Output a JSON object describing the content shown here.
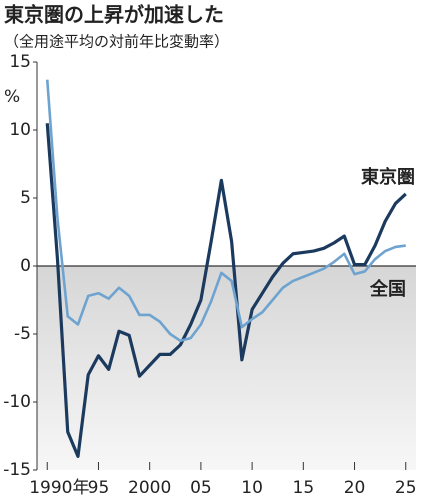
{
  "chart_data": {
    "type": "line",
    "title": "東京圏の上昇が加速した",
    "subtitle": "（全用途平均の対前年比変動率）",
    "ylabel": "%",
    "x": [
      1990,
      1991,
      1992,
      1993,
      1994,
      1995,
      1996,
      1997,
      1998,
      1999,
      2000,
      2001,
      2002,
      2003,
      2004,
      2005,
      2006,
      2007,
      2008,
      2009,
      2010,
      2011,
      2012,
      2013,
      2014,
      2015,
      2016,
      2017,
      2018,
      2019,
      2020,
      2021,
      2022,
      2023,
      2024,
      2025
    ],
    "series": [
      {
        "name": "東京圏",
        "color": "#1c3a5e",
        "values": [
          10.5,
          0.5,
          -12.2,
          -14,
          -8,
          -6.6,
          -7.6,
          -4.8,
          -5.1,
          -8.1,
          -7.3,
          -6.5,
          -6.5,
          -5.8,
          -4.3,
          -2.5,
          1.8,
          6.3,
          1.8,
          -6.9,
          -3.2,
          -2,
          -0.8,
          0.2,
          0.9,
          1,
          1.1,
          1.3,
          1.7,
          2.2,
          0.1,
          0.1,
          1.5,
          3.3,
          4.6,
          5.3
        ]
      },
      {
        "name": "全国",
        "color": "#6ea3cf",
        "values": [
          13.7,
          3.5,
          -3.7,
          -4.3,
          -2.2,
          -2,
          -2.4,
          -1.6,
          -2.2,
          -3.6,
          -3.6,
          -4.1,
          -5,
          -5.5,
          -5.3,
          -4.3,
          -2.6,
          -0.5,
          -1.1,
          -4.5,
          -3.9,
          -3.4,
          -2.5,
          -1.6,
          -1.1,
          -0.8,
          -0.5,
          -0.2,
          0.3,
          0.9,
          -0.6,
          -0.4,
          0.5,
          1.1,
          1.4,
          1.5
        ]
      }
    ],
    "xlim": [
      1989,
      2026
    ],
    "xticks": [
      {
        "value": 1990,
        "label": "1990年"
      },
      {
        "value": 1995,
        "label": "95"
      },
      2000,
      {
        "value": 2005,
        "label": "05"
      },
      {
        "value": 2010,
        "label": "10"
      },
      {
        "value": 2015,
        "label": "15"
      },
      {
        "value": 2020,
        "label": "20"
      },
      {
        "value": 2025,
        "label": "25"
      }
    ],
    "ylim": [
      -15,
      15
    ],
    "yticks": [
      15,
      10,
      5,
      0,
      -5,
      -10,
      -15
    ]
  }
}
